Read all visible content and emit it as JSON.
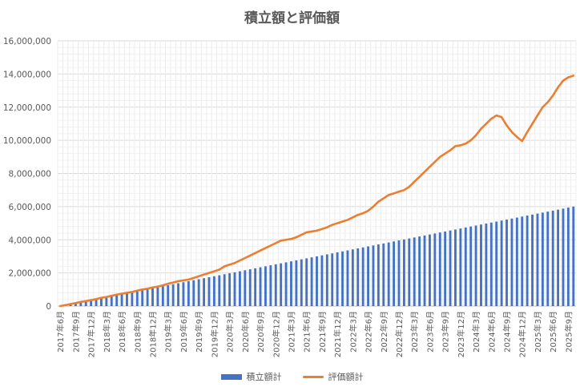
{
  "chart_data": {
    "type": "bar+line",
    "title": "積立額と評価額",
    "xlabel": "",
    "ylabel": "",
    "ylim": [
      0,
      16000000
    ],
    "yticks": [
      0,
      2000000,
      4000000,
      6000000,
      8000000,
      10000000,
      12000000,
      14000000,
      16000000
    ],
    "ytick_labels": [
      "0",
      "2,000,000",
      "4,000,000",
      "6,000,000",
      "8,000,000",
      "10,000,000",
      "12,000,000",
      "14,000,000",
      "16,000,000"
    ],
    "start_month": "2017-06",
    "month_count": 101,
    "x_tick_labels": [
      "2017年6月",
      "2017年9月",
      "2017年12月",
      "2018年3月",
      "2018年6月",
      "2018年9月",
      "2018年12月",
      "2019年3月",
      "2019年6月",
      "2019年9月",
      "2019年12月",
      "2020年3月",
      "2020年6月",
      "2020年9月",
      "2020年12月",
      "2021年3月",
      "2021年6月",
      "2021年9月",
      "2021年12月",
      "2022年3月",
      "2022年6月",
      "2022年9月",
      "2022年12月",
      "2023年3月",
      "2023年6月",
      "2023年9月",
      "2023年12月",
      "2024年3月",
      "2024年6月",
      "2024年9月",
      "2024年12月",
      "2025年3月",
      "2025年6月",
      "2025年9月"
    ],
    "grid": true,
    "legend_position": "bottom",
    "series": [
      {
        "name": "積立額計",
        "kind": "bar",
        "color": "#4472C4",
        "values": [
          0,
          60000,
          120000,
          180000,
          240000,
          300000,
          360000,
          420000,
          480000,
          540000,
          600000,
          660000,
          720000,
          780000,
          840000,
          900000,
          960000,
          1020000,
          1080000,
          1140000,
          1200000,
          1260000,
          1320000,
          1380000,
          1440000,
          1500000,
          1560000,
          1620000,
          1680000,
          1740000,
          1800000,
          1860000,
          1920000,
          1980000,
          2040000,
          2100000,
          2160000,
          2220000,
          2280000,
          2340000,
          2400000,
          2460000,
          2520000,
          2580000,
          2640000,
          2700000,
          2760000,
          2820000,
          2880000,
          2940000,
          3000000,
          3060000,
          3120000,
          3180000,
          3240000,
          3300000,
          3360000,
          3420000,
          3480000,
          3540000,
          3600000,
          3660000,
          3720000,
          3780000,
          3840000,
          3900000,
          3960000,
          4020000,
          4080000,
          4140000,
          4200000,
          4260000,
          4320000,
          4380000,
          4440000,
          4500000,
          4560000,
          4620000,
          4680000,
          4740000,
          4800000,
          4860000,
          4920000,
          4980000,
          5040000,
          5100000,
          5160000,
          5220000,
          5280000,
          5340000,
          5400000,
          5460000,
          5520000,
          5580000,
          5640000,
          5700000,
          5760000,
          5820000,
          5880000,
          5940000,
          6000000
        ]
      },
      {
        "name": "評価額計",
        "kind": "line",
        "color": "#ED7D31",
        "values": [
          0,
          60000,
          120000,
          180000,
          250000,
          300000,
          360000,
          420000,
          500000,
          550000,
          620000,
          690000,
          750000,
          800000,
          850000,
          930000,
          1000000,
          1050000,
          1120000,
          1180000,
          1250000,
          1350000,
          1420000,
          1500000,
          1550000,
          1600000,
          1700000,
          1800000,
          1900000,
          2000000,
          2100000,
          2200000,
          2400000,
          2500000,
          2600000,
          2750000,
          2900000,
          3050000,
          3200000,
          3350000,
          3500000,
          3650000,
          3800000,
          3950000,
          4000000,
          4050000,
          4150000,
          4300000,
          4450000,
          4500000,
          4550000,
          4650000,
          4750000,
          4900000,
          5000000,
          5100000,
          5200000,
          5350000,
          5500000,
          5600000,
          5750000,
          6000000,
          6300000,
          6500000,
          6700000,
          6800000,
          6900000,
          7000000,
          7200000,
          7500000,
          7800000,
          8100000,
          8400000,
          8700000,
          9000000,
          9200000,
          9400000,
          9650000,
          9700000,
          9800000,
          10000000,
          10300000,
          10700000,
          11000000,
          11300000,
          11500000,
          11400000,
          10900000,
          10500000,
          10200000,
          9950000,
          10500000,
          11000000,
          11500000,
          12000000,
          12300000,
          12700000,
          13200000,
          13600000,
          13800000,
          13900000
        ]
      }
    ]
  }
}
